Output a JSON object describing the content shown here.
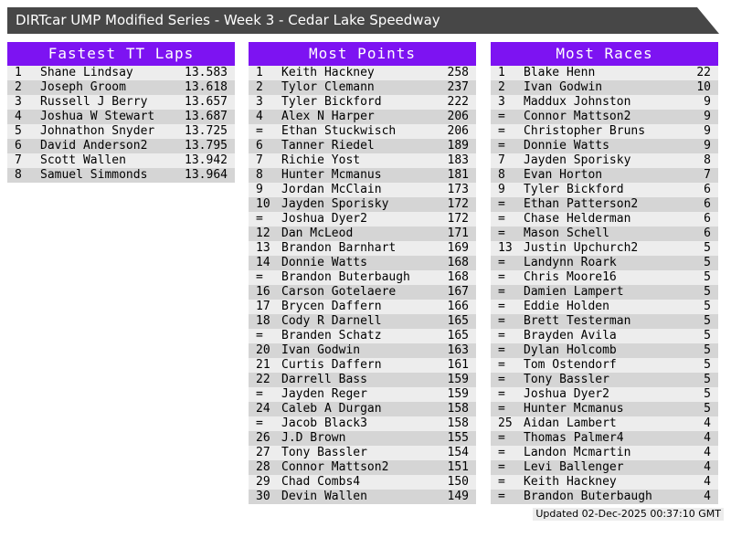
{
  "title": "DIRTcar UMP Modified Series - Week 3 - Cedar Lake Speedway",
  "panels": [
    {
      "title": "Fastest TT Laps",
      "rows": [
        [
          "1",
          "Shane Lindsay",
          "13.583"
        ],
        [
          "2",
          "Joseph Groom",
          "13.618"
        ],
        [
          "3",
          "Russell J Berry",
          "13.657"
        ],
        [
          "4",
          "Joshua W Stewart",
          "13.687"
        ],
        [
          "5",
          "Johnathon Snyder",
          "13.725"
        ],
        [
          "6",
          "David Anderson2",
          "13.795"
        ],
        [
          "7",
          "Scott Wallen",
          "13.942"
        ],
        [
          "8",
          "Samuel Simmonds",
          "13.964"
        ]
      ]
    },
    {
      "title": "Most Points",
      "rows": [
        [
          "1",
          "Keith Hackney",
          "258"
        ],
        [
          "2",
          "Tylor Clemann",
          "237"
        ],
        [
          "3",
          "Tyler Bickford",
          "222"
        ],
        [
          "4",
          "Alex N Harper",
          "206"
        ],
        [
          "=",
          "Ethan Stuckwisch",
          "206"
        ],
        [
          "6",
          "Tanner Riedel",
          "189"
        ],
        [
          "7",
          "Richie Yost",
          "183"
        ],
        [
          "8",
          "Hunter Mcmanus",
          "181"
        ],
        [
          "9",
          "Jordan McClain",
          "173"
        ],
        [
          "10",
          "Jayden Sporisky",
          "172"
        ],
        [
          "=",
          "Joshua Dyer2",
          "172"
        ],
        [
          "12",
          "Dan McLeod",
          "171"
        ],
        [
          "13",
          "Brandon Barnhart",
          "169"
        ],
        [
          "14",
          "Donnie Watts",
          "168"
        ],
        [
          "=",
          "Brandon Buterbaugh",
          "168"
        ],
        [
          "16",
          "Carson Gotelaere",
          "167"
        ],
        [
          "17",
          "Brycen Daffern",
          "166"
        ],
        [
          "18",
          "Cody R Darnell",
          "165"
        ],
        [
          "=",
          "Branden Schatz",
          "165"
        ],
        [
          "20",
          "Ivan Godwin",
          "163"
        ],
        [
          "21",
          "Curtis Daffern",
          "161"
        ],
        [
          "22",
          "Darrell Bass",
          "159"
        ],
        [
          "=",
          "Jayden Reger",
          "159"
        ],
        [
          "24",
          "Caleb A Durgan",
          "158"
        ],
        [
          "=",
          "Jacob Black3",
          "158"
        ],
        [
          "26",
          "J.D Brown",
          "155"
        ],
        [
          "27",
          "Tony Bassler",
          "154"
        ],
        [
          "28",
          "Connor Mattson2",
          "151"
        ],
        [
          "29",
          "Chad Combs4",
          "150"
        ],
        [
          "30",
          "Devin Wallen",
          "149"
        ]
      ]
    },
    {
      "title": "Most Races",
      "rows": [
        [
          "1",
          "Blake Henn",
          "22"
        ],
        [
          "2",
          "Ivan Godwin",
          "10"
        ],
        [
          "3",
          "Maddux Johnston",
          "9"
        ],
        [
          "=",
          "Connor Mattson2",
          "9"
        ],
        [
          "=",
          "Christopher Bruns",
          "9"
        ],
        [
          "=",
          "Donnie Watts",
          "9"
        ],
        [
          "7",
          "Jayden Sporisky",
          "8"
        ],
        [
          "8",
          "Evan Horton",
          "7"
        ],
        [
          "9",
          "Tyler Bickford",
          "6"
        ],
        [
          "=",
          "Ethan Patterson2",
          "6"
        ],
        [
          "=",
          "Chase Helderman",
          "6"
        ],
        [
          "=",
          "Mason Schell",
          "6"
        ],
        [
          "13",
          "Justin Upchurch2",
          "5"
        ],
        [
          "=",
          "Landynn Roark",
          "5"
        ],
        [
          "=",
          "Chris Moore16",
          "5"
        ],
        [
          "=",
          "Damien Lampert",
          "5"
        ],
        [
          "=",
          "Eddie Holden",
          "5"
        ],
        [
          "=",
          "Brett Testerman",
          "5"
        ],
        [
          "=",
          "Brayden Avila",
          "5"
        ],
        [
          "=",
          "Dylan Holcomb",
          "5"
        ],
        [
          "=",
          "Tom Ostendorf",
          "5"
        ],
        [
          "=",
          "Tony Bassler",
          "5"
        ],
        [
          "=",
          "Joshua Dyer2",
          "5"
        ],
        [
          "=",
          "Hunter Mcmanus",
          "5"
        ],
        [
          "25",
          "Aidan Lambert",
          "4"
        ],
        [
          "=",
          "Thomas Palmer4",
          "4"
        ],
        [
          "=",
          "Landon Mcmartin",
          "4"
        ],
        [
          "=",
          "Levi Ballenger",
          "4"
        ],
        [
          "=",
          "Keith Hackney",
          "4"
        ],
        [
          "=",
          "Brandon Buterbaugh",
          "4"
        ]
      ]
    }
  ],
  "footer": {
    "updated_text": "Updated 02-Dec-2025 00:37:10 GMT"
  },
  "colors": {
    "accent_purple": "#7d13f2",
    "titlebar_gray": "#474747",
    "row_odd": "#ededed",
    "row_even": "#d5d5d5",
    "footer_bg": "#ececec"
  }
}
